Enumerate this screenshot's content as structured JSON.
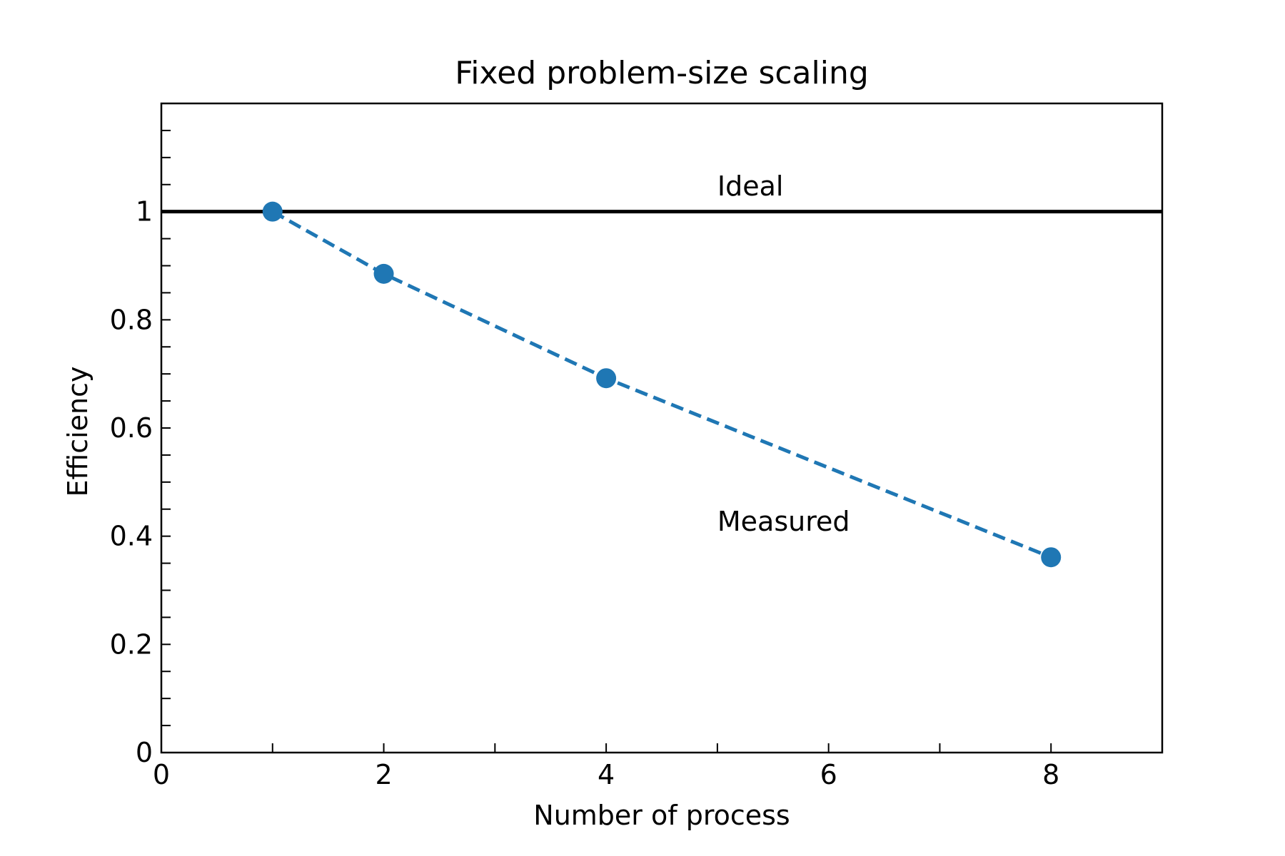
{
  "chart_data": {
    "type": "line",
    "title": "Fixed problem-size scaling",
    "xlabel": "Number of process",
    "ylabel": "Efficiency",
    "xlim": [
      0,
      9
    ],
    "ylim": [
      0,
      1.2
    ],
    "x_ticks": [
      0,
      2,
      4,
      6,
      8
    ],
    "x_tick_labels": [
      "0",
      "2",
      "4",
      "6",
      "8"
    ],
    "x_minor_ticks": [
      1,
      3,
      5,
      7
    ],
    "y_ticks": [
      0,
      0.2,
      0.4,
      0.6,
      0.8,
      1
    ],
    "y_tick_labels": [
      "0",
      "0.2",
      "0.4",
      "0.6",
      "0.8",
      "1"
    ],
    "y_minor_ticks": [
      0.05,
      0.1,
      0.15,
      0.25,
      0.3,
      0.35,
      0.45,
      0.5,
      0.55,
      0.65,
      0.7,
      0.75,
      0.85,
      0.9,
      0.95,
      1.05,
      1.1,
      1.15
    ],
    "grid": false,
    "series": [
      {
        "name": "Ideal",
        "style": "solid",
        "color": "#000000",
        "x": [
          0,
          9
        ],
        "y": [
          1,
          1
        ]
      },
      {
        "name": "Measured",
        "style": "dashed",
        "markers": true,
        "color": "#1f77b4",
        "x": [
          1,
          2,
          4,
          8
        ],
        "y": [
          1.0,
          0.885,
          0.692,
          0.361
        ]
      }
    ],
    "annotations": [
      {
        "text": "Ideal",
        "x": 5,
        "y": 1.03
      },
      {
        "text": "Measured",
        "x": 5,
        "y": 0.41
      }
    ]
  }
}
